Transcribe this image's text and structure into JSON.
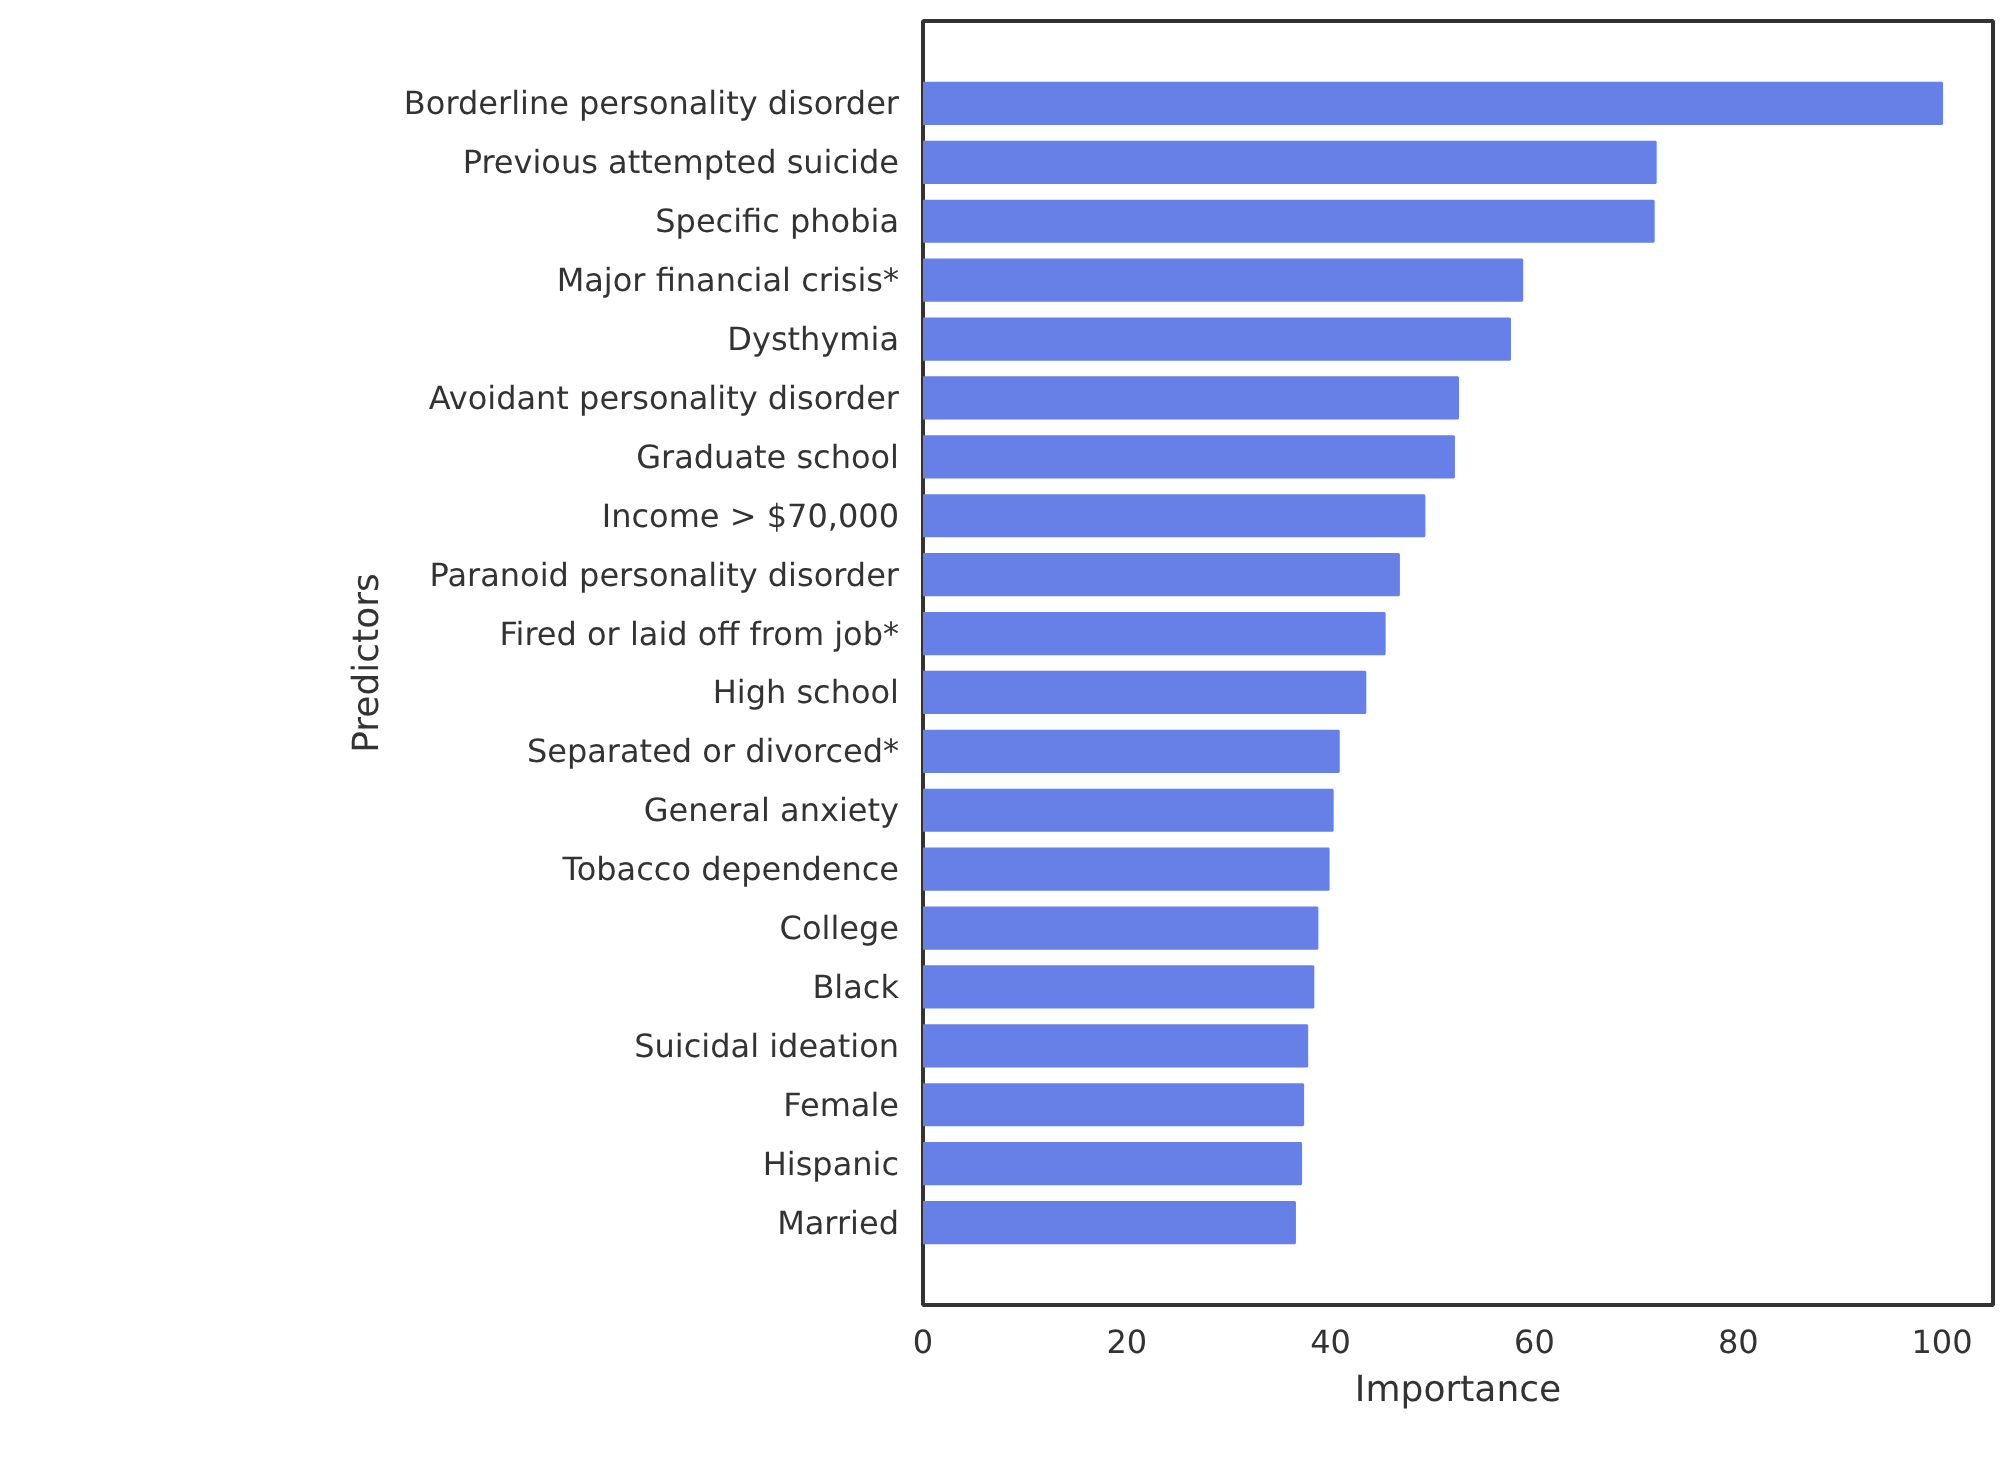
{
  "chart_data": {
    "type": "bar",
    "orientation": "horizontal",
    "xlabel": "Importance",
    "ylabel": "Predictors",
    "categories": [
      "Borderline personality disorder",
      "Previous attempted suicide",
      "Specific phobia",
      "Major financial crisis*",
      "Dysthymia",
      "Avoidant personality disorder",
      "Graduate school",
      "Income > $70,000",
      "Paranoid personality disorder",
      "Fired or laid off from job*",
      "High school",
      "Separated or divorced*",
      "General anxiety",
      "Tobacco dependence",
      "College",
      "Black",
      "Suicidal ideation",
      "Female",
      "Hispanic",
      "Married"
    ],
    "values": [
      100,
      71.9,
      71.7,
      58.8,
      57.6,
      52.5,
      52.1,
      49.2,
      46.7,
      45.3,
      43.4,
      40.8,
      40.2,
      39.8,
      38.7,
      38.3,
      37.7,
      37.3,
      37.1,
      36.5
    ],
    "color": "#6680e8",
    "xlim": [
      0,
      105
    ],
    "xticks": [
      0,
      20,
      40,
      60,
      80,
      100
    ],
    "grid": false
  }
}
